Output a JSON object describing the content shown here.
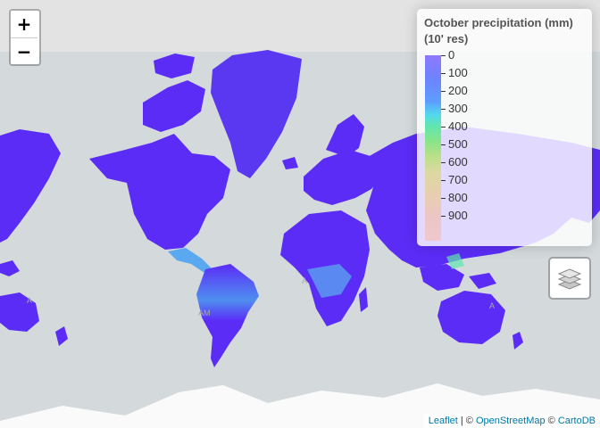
{
  "map": {
    "zoom_in_label": "+",
    "zoom_out_label": "−",
    "layer_control_icon": "layers-icon",
    "place_labels": [
      "A",
      "AM",
      "A",
      "A"
    ]
  },
  "legend": {
    "title": "October precipitation (mm) (10' res)",
    "ticks": [
      "0",
      "100",
      "200",
      "300",
      "400",
      "500",
      "600",
      "700",
      "800",
      "900"
    ]
  },
  "attribution": {
    "leaflet": "Leaflet",
    "sep1": " | © ",
    "osm": "OpenStreetMap",
    "sep2": " © ",
    "carto": "CartoDB"
  },
  "colors": {
    "ocean": "#d4dadc",
    "land_basemap": "#f2f2f0",
    "precip_low": "#5b2cf6",
    "precip_mid": "#5fe6b0",
    "precip_high": "#efc8cf"
  }
}
